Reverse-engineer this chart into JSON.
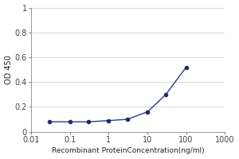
{
  "x": [
    0.03,
    0.1,
    0.3,
    1,
    3,
    10,
    30,
    100
  ],
  "y": [
    0.08,
    0.08,
    0.08,
    0.09,
    0.1,
    0.16,
    0.3,
    0.52
  ],
  "line_color": "#2e3b8b",
  "marker_color": "#1a2570",
  "marker_size": 3.5,
  "line_width": 1.0,
  "xlabel": "Recombinant ProteinConcentration(ng/ml)",
  "ylabel": "OD 450",
  "xlim": [
    0.01,
    1000
  ],
  "ylim": [
    0,
    1
  ],
  "yticks": [
    0,
    0.2,
    0.4,
    0.6,
    0.8,
    1
  ],
  "xtick_values": [
    0.01,
    0.1,
    1,
    10,
    100,
    1000
  ],
  "xlabel_fontsize": 6.5,
  "ylabel_fontsize": 7,
  "tick_fontsize": 7,
  "background_color": "#ffffff",
  "plot_bg_color": "#ffffff",
  "grid_color": "#c8c8c8",
  "spine_color": "#888888",
  "tick_color": "#444444"
}
